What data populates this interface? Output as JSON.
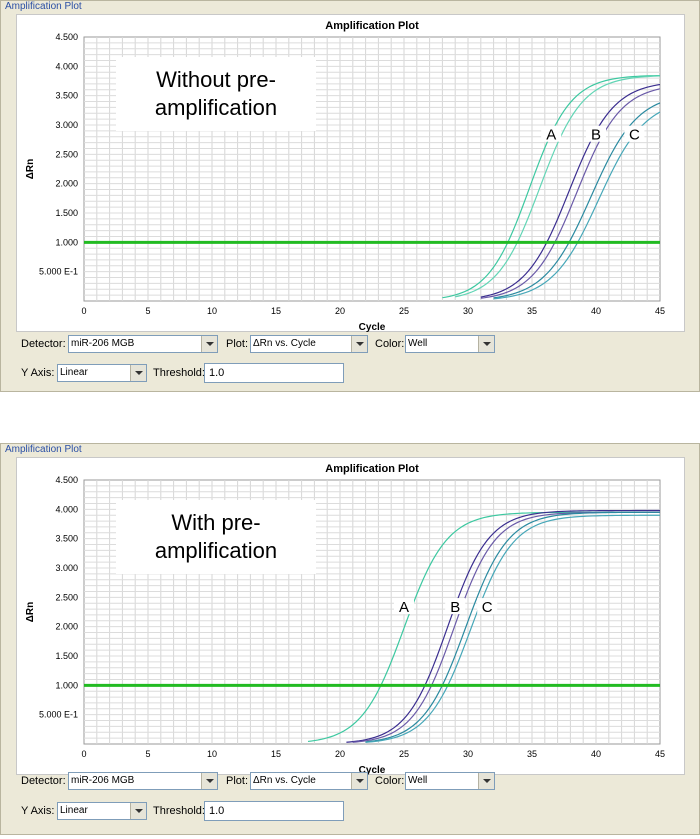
{
  "panels": [
    {
      "panel_title": "Amplification Plot",
      "controls": {
        "detector_label": "Detector:",
        "detector_value": "miR-206 MGB",
        "plot_label": "Plot:",
        "plot_value": "ΔRn vs. Cycle",
        "color_label": "Color:",
        "color_value": "Well",
        "yaxis_label": "Y Axis:",
        "yaxis_value": "Linear",
        "threshold_label": "Threshold:",
        "threshold_value": "1.0"
      }
    },
    {
      "panel_title": "Amplification Plot",
      "controls": {
        "detector_label": "Detector:",
        "detector_value": "miR-206 MGB",
        "plot_label": "Plot:",
        "plot_value": "ΔRn vs. Cycle",
        "color_label": "Color:",
        "color_value": "Well",
        "yaxis_label": "Y Axis:",
        "yaxis_value": "Linear",
        "threshold_label": "Threshold:",
        "threshold_value": "1.0"
      }
    }
  ],
  "chart_data": [
    {
      "type": "line",
      "title": "Amplification Plot",
      "xlabel": "Cycle",
      "ylabel": "ΔRn",
      "xlim": [
        0,
        45
      ],
      "ylim": [
        0,
        4.5
      ],
      "xticks": [
        "0",
        "5",
        "10",
        "15",
        "20",
        "25",
        "30",
        "35",
        "40",
        "45"
      ],
      "yticks": [
        {
          "value": 4.5,
          "label": "4.500"
        },
        {
          "value": 4.0,
          "label": "4.000"
        },
        {
          "value": 3.5,
          "label": "3.500"
        },
        {
          "value": 3.0,
          "label": "3.000"
        },
        {
          "value": 2.5,
          "label": "2.500"
        },
        {
          "value": 2.0,
          "label": "2.000"
        },
        {
          "value": 1.5,
          "label": "1.500"
        },
        {
          "value": 1.0,
          "label": "1.000"
        },
        {
          "value": 0.5,
          "label": "5.000 E-1"
        }
      ],
      "threshold": 1.0,
      "threshold_color": "#22bb22",
      "annotation": "Without pre-amplification",
      "curve_labels": [
        {
          "text": "A",
          "x": 36.5,
          "y": 2.8
        },
        {
          "text": "B",
          "x": 40,
          "y": 2.8
        },
        {
          "text": "C",
          "x": 43,
          "y": 2.8
        }
      ],
      "series": [
        {
          "label": "A",
          "color": "#3cc8a0",
          "mid": 34.8,
          "k": 0.62,
          "max": 3.85,
          "start": 28
        },
        {
          "label": "A",
          "color": "#62d5b5",
          "mid": 35.6,
          "k": 0.6,
          "max": 3.85,
          "start": 29
        },
        {
          "label": "B",
          "color": "#3a2d8f",
          "mid": 37.9,
          "k": 0.58,
          "max": 3.75,
          "start": 31
        },
        {
          "label": "B",
          "color": "#6a5aa8",
          "mid": 38.5,
          "k": 0.58,
          "max": 3.7,
          "start": 31
        },
        {
          "label": "C",
          "color": "#2a8aa0",
          "mid": 39.6,
          "k": 0.55,
          "max": 3.55,
          "start": 32
        },
        {
          "label": "C",
          "color": "#46a7b8",
          "mid": 40.2,
          "k": 0.55,
          "max": 3.45,
          "start": 32
        }
      ]
    },
    {
      "type": "line",
      "title": "Amplification Plot",
      "xlabel": "Cycle",
      "ylabel": "ΔRn",
      "xlim": [
        0,
        45
      ],
      "ylim": [
        0,
        4.5
      ],
      "xticks": [
        "0",
        "5",
        "10",
        "15",
        "20",
        "25",
        "30",
        "35",
        "40",
        "45"
      ],
      "yticks": [
        {
          "value": 4.5,
          "label": "4.500"
        },
        {
          "value": 4.0,
          "label": "4.000"
        },
        {
          "value": 3.5,
          "label": "3.500"
        },
        {
          "value": 3.0,
          "label": "3.000"
        },
        {
          "value": 2.5,
          "label": "2.500"
        },
        {
          "value": 2.0,
          "label": "2.000"
        },
        {
          "value": 1.5,
          "label": "1.500"
        },
        {
          "value": 1.0,
          "label": "1.000"
        },
        {
          "value": 0.5,
          "label": "5.000 E-1"
        }
      ],
      "threshold": 1.0,
      "threshold_color": "#22bb22",
      "annotation": "With pre-amplification",
      "curve_labels": [
        {
          "text": "A",
          "x": 25,
          "y": 2.3
        },
        {
          "text": "B",
          "x": 29,
          "y": 2.3
        },
        {
          "text": "C",
          "x": 31.5,
          "y": 2.3
        }
      ],
      "series": [
        {
          "label": "A",
          "color": "#3cc8a0",
          "mid": 25.0,
          "k": 0.6,
          "max": 3.95,
          "start": 17.5
        },
        {
          "label": "B",
          "color": "#3a2d8f",
          "mid": 28.4,
          "k": 0.62,
          "max": 3.98,
          "start": 20.5
        },
        {
          "label": "B",
          "color": "#6a5aa8",
          "mid": 28.9,
          "k": 0.62,
          "max": 3.95,
          "start": 21
        },
        {
          "label": "C",
          "color": "#2a8aa0",
          "mid": 29.8,
          "k": 0.6,
          "max": 3.95,
          "start": 22
        },
        {
          "label": "C",
          "color": "#46a7b8",
          "mid": 30.2,
          "k": 0.6,
          "max": 3.9,
          "start": 22
        }
      ]
    }
  ]
}
